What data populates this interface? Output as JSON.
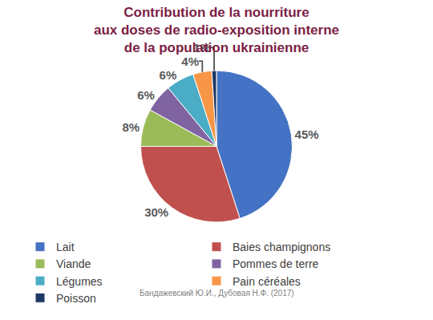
{
  "chart_data": {
    "type": "pie",
    "title": "Contribution de la nourriture\naux doses de radio-exposition interne\nde la population ukrainienne",
    "categories": [
      "Lait",
      "Baies champignons",
      "Viande",
      "Pommes de terre",
      "Légumes",
      "Pain céréales",
      "Poisson"
    ],
    "values": [
      45,
      30,
      8,
      6,
      6,
      4,
      1
    ],
    "value_labels": [
      "45%",
      "30%",
      "8%",
      "6%",
      "6%",
      "4%",
      "1%"
    ],
    "colors": [
      "#4472c4",
      "#c0504d",
      "#9bbb59",
      "#8064a2",
      "#4bacc6",
      "#f79646",
      "#1f3864"
    ],
    "data_labels": true,
    "legend": "bottom",
    "annotations": [
      "Бандажевский Ю.И., Дубовая Н.Ф. (2017)"
    ]
  }
}
